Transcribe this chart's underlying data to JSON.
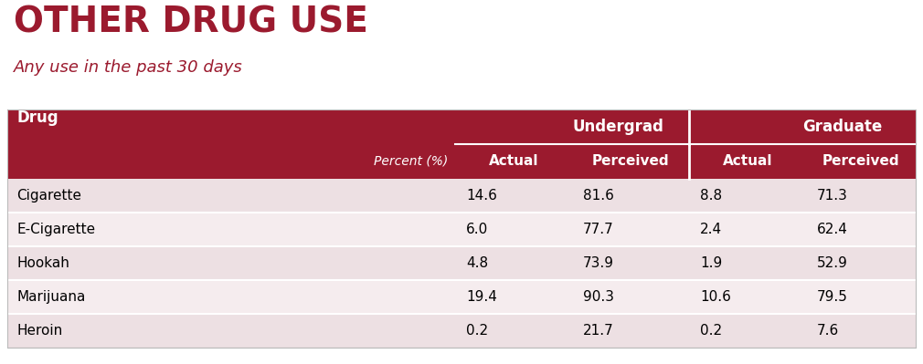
{
  "title": "OTHER DRUG USE",
  "subtitle": "Any use in the past 30 days",
  "title_color": "#9B1A2E",
  "subtitle_color": "#9B1A2E",
  "header_bg_color": "#9B1A2E",
  "header_text_color": "#FFFFFF",
  "row_colors": [
    "#EDE0E3",
    "#F5ECEE",
    "#EDE0E3",
    "#F5ECEE",
    "#EDE0E3"
  ],
  "col_header_drug": "Drug",
  "col_header_pct": "Percent (%)",
  "col_header_undergrad": "Undergrad",
  "col_header_grad": "Graduate",
  "col_sub": [
    "Actual",
    "Perceived",
    "Actual",
    "Perceived"
  ],
  "drugs": [
    "Cigarette",
    "E-Cigarette",
    "Hookah",
    "Marijuana",
    "Heroin"
  ],
  "undergrad_actual": [
    "14.6",
    "6.0",
    "4.8",
    "19.4",
    "0.2"
  ],
  "undergrad_perceived": [
    "81.6",
    "77.7",
    "73.9",
    "90.3",
    "21.7"
  ],
  "grad_actual": [
    "8.8",
    "2.4",
    "1.9",
    "10.6",
    "0.2"
  ],
  "grad_perceived": [
    "71.3",
    "62.4",
    "52.9",
    "79.5",
    "7.6"
  ],
  "bg_color": "#FFFFFF"
}
